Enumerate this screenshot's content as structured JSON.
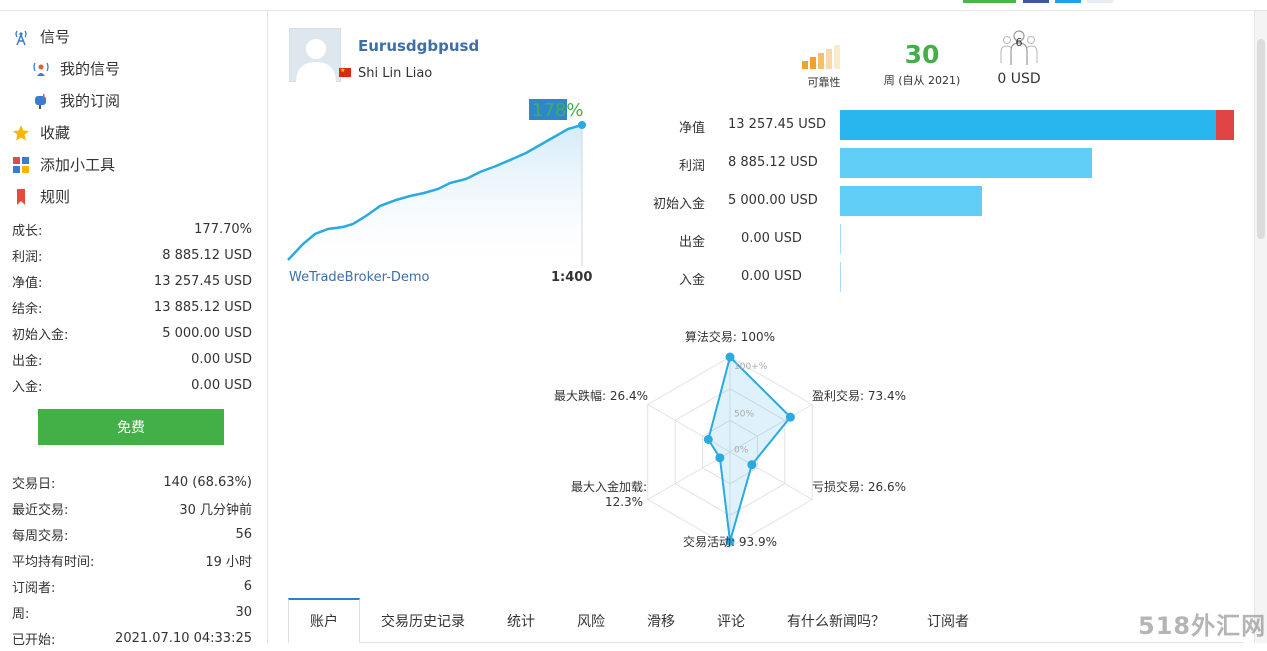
{
  "nav": {
    "signals": "信号",
    "my_signals": "我的信号",
    "my_subscriptions": "我的订阅",
    "favorites": "收藏",
    "add_widget": "添加小工具",
    "rules": "规则"
  },
  "sidebar_stats_top": [
    {
      "label": "成长:",
      "value": "177.70%"
    },
    {
      "label": "利润:",
      "value": "8 885.12 USD"
    },
    {
      "label": "净值:",
      "value": "13 257.45 USD"
    },
    {
      "label": "结余:",
      "value": "13 885.12 USD"
    },
    {
      "label": "初始入金:",
      "value": "5 000.00 USD"
    },
    {
      "label": "出金:",
      "value": "0.00 USD"
    },
    {
      "label": "入金:",
      "value": "0.00 USD"
    }
  ],
  "free_button": "免费",
  "sidebar_stats_bottom": [
    {
      "label": "交易日:",
      "value": "140 (68.63%)"
    },
    {
      "label": "最近交易:",
      "value": "30 几分钟前"
    },
    {
      "label": "每周交易:",
      "value": "56"
    },
    {
      "label": "平均持有时间:",
      "value": "19 小时"
    },
    {
      "label": "订阅者:",
      "value": "6"
    },
    {
      "label": "周:",
      "value": "30"
    },
    {
      "label": "已开始:",
      "value": "2021.07.10 04:33:25"
    }
  ],
  "signal": {
    "name": "Eurusdgbpusd",
    "author": "Shi Lin Liao",
    "growth_badge": "178%",
    "broker": "WeTradeBroker-Demo",
    "leverage": "1:400"
  },
  "metrics": {
    "reliability_label": "可靠性",
    "weeks_value": "30",
    "weeks_label": "周 (自从 2021)",
    "subscribers_count": "6",
    "subscribers_value": "0 USD"
  },
  "balance_bars": [
    {
      "label": "净值",
      "value": "13 257.45 USD",
      "amount": 13257.45,
      "color": "#29b6ef",
      "loss": 628
    },
    {
      "label": "利润",
      "value": "8 885.12 USD",
      "amount": 8885.12,
      "color": "#5fcdf5"
    },
    {
      "label": "初始入金",
      "value": "5 000.00 USD",
      "amount": 5000,
      "color": "#5fcdf5"
    },
    {
      "label": "出金",
      "value": "0.00 USD",
      "amount": 0,
      "color": "#5fcdf5"
    },
    {
      "label": "入金",
      "value": "0.00 USD",
      "amount": 0,
      "color": "#5fcdf5"
    }
  ],
  "radar": {
    "ring_labels": [
      "100+%",
      "50%",
      "0%"
    ],
    "axes": [
      {
        "label": "算法交易: 100%",
        "value": 1.0
      },
      {
        "label": "盈利交易: 73.4%",
        "value": 0.734
      },
      {
        "label": "亏损交易: 26.6%",
        "value": 0.266
      },
      {
        "label": "交易活动: 93.9%",
        "value": 0.939
      },
      {
        "label": "最大入金加载:",
        "label2": "12.3%",
        "value": 0.123
      },
      {
        "label": "最大跌幅: 26.4%",
        "value": 0.264
      }
    ]
  },
  "tabs": [
    "账户",
    "交易历史记录",
    "统计",
    "风险",
    "滑移",
    "评论",
    "有什么新闻吗？",
    "订阅者"
  ],
  "watermark": "518外汇网",
  "colors": {
    "accent_blue": "#29b6ef",
    "line_blue": "#29aae1",
    "green": "#43b047",
    "link_blue": "#3e6fa8",
    "loss_red": "#e04444"
  }
}
